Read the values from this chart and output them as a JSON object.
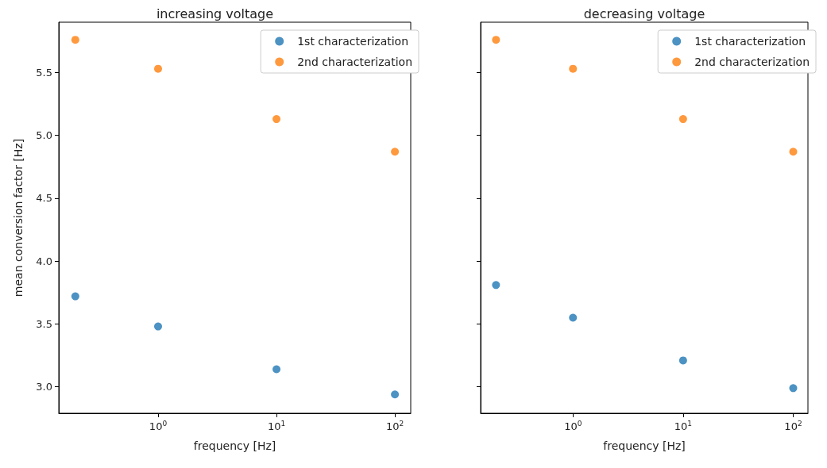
{
  "chart_data": [
    {
      "type": "scatter",
      "title": "increasing voltage",
      "xlabel": "frequency [Hz]",
      "ylabel": "mean conversion factor [Hz]",
      "log": "x",
      "marker": "circle",
      "legend": "top right",
      "grid": false,
      "x": [
        0.2,
        1,
        10,
        100
      ],
      "series": [
        {
          "name": "1st characterization",
          "color": "#1f77b4",
          "values": [
            3.72,
            3.48,
            3.14,
            2.94
          ]
        },
        {
          "name": "2nd characterization",
          "color": "#ff7f0e",
          "values": [
            5.76,
            5.53,
            5.13,
            4.87
          ]
        }
      ],
      "xlim": [
        0.145,
        136
      ],
      "xticks": [
        {
          "value": 1,
          "label": "10$^{0}$"
        },
        {
          "value": 10,
          "label": "10$^{1}$"
        },
        {
          "value": 100,
          "label": "10$^{2}$"
        }
      ],
      "ylim": [
        2.79,
        5.9
      ],
      "yticks": [
        {
          "value": 3,
          "label": "3.0"
        },
        {
          "value": 3.5,
          "label": "3.5"
        },
        {
          "value": 4,
          "label": "4.0"
        },
        {
          "value": 4.5,
          "label": "4.5"
        },
        {
          "value": 5,
          "label": "5.0"
        },
        {
          "value": 5.5,
          "label": "5.5"
        }
      ]
    },
    {
      "type": "scatter",
      "title": "decreasing voltage",
      "xlabel": "frequency [Hz]",
      "log": "x",
      "marker": "circle",
      "legend": "top right",
      "grid": false,
      "tick_labels": "x",
      "x": [
        0.2,
        1,
        10,
        100
      ],
      "series": [
        {
          "name": "1st characterization",
          "color": "#1f77b4",
          "values": [
            3.81,
            3.55,
            3.21,
            2.99
          ]
        },
        {
          "name": "2nd characterization",
          "color": "#ff7f0e",
          "values": [
            5.76,
            5.53,
            5.13,
            4.87
          ]
        }
      ],
      "xlim": [
        0.145,
        136
      ],
      "xticks": [
        {
          "value": 1,
          "label": "10$^{0}$"
        },
        {
          "value": 10,
          "label": "10$^{1}$"
        },
        {
          "value": 100,
          "label": "10$^{2}$"
        }
      ],
      "ylim": [
        2.79,
        5.9
      ],
      "yticks": [
        {
          "value": 3,
          "label": null
        },
        {
          "value": 3.5,
          "label": null
        },
        {
          "value": 4,
          "label": null
        },
        {
          "value": 4.5,
          "label": null
        },
        {
          "value": 5,
          "label": null
        },
        {
          "value": 5.5,
          "label": null
        }
      ]
    }
  ]
}
